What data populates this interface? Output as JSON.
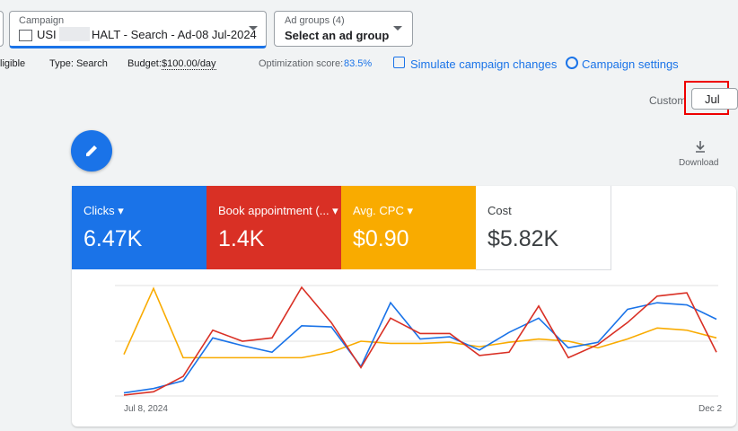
{
  "campaign": {
    "label": "Campaign",
    "name_start": "USI",
    "name_end": "HALT - Search - Ad-08 Jul-2024"
  },
  "ad_groups": {
    "label": "Ad groups (4)",
    "value": "Select an ad group"
  },
  "summary": {
    "status": "ligible",
    "type": "Type: Search",
    "budget_label": "Budget:",
    "budget": "$100.00/day",
    "optimization_label": "Optimization score:",
    "optimization": "83.5%",
    "simulate": "Simulate campaign changes",
    "settings": "Campaign settings"
  },
  "date": {
    "label": "Custom",
    "button": "Jul"
  },
  "download": "Download",
  "metrics": [
    {
      "name": "Clicks",
      "value": "6.47K",
      "color": "#1a73e8"
    },
    {
      "name": "Book appointment (...",
      "value": "1.4K",
      "color": "#d93025"
    },
    {
      "name": "Avg. CPC",
      "value": "$0.90",
      "color": "#f9ab00"
    },
    {
      "name": "Cost",
      "value": "$5.82K",
      "color": "#ffffff"
    }
  ],
  "chart_data": {
    "type": "line",
    "x_labels": [
      "Jul 8, 2024",
      "Dec 2"
    ],
    "series": [
      {
        "name": "Avg. CPC",
        "color": "#f9ab00",
        "values": [
          37,
          97,
          34,
          34,
          34,
          34,
          34,
          39,
          49,
          47,
          47,
          48,
          44,
          48,
          51,
          49,
          43,
          51,
          61,
          59,
          52
        ]
      },
      {
        "name": "Clicks",
        "color": "#1a73e8",
        "values": [
          2,
          6,
          13,
          52,
          45,
          39,
          63,
          62,
          26,
          84,
          51,
          53,
          41,
          57,
          70,
          43,
          48,
          78,
          84,
          82,
          69
        ]
      },
      {
        "name": "Book appointment (...",
        "color": "#d93025",
        "values": [
          0,
          3,
          17,
          59,
          49,
          52,
          98,
          66,
          25,
          70,
          56,
          56,
          36,
          39,
          81,
          34,
          46,
          66,
          90,
          93,
          39
        ]
      }
    ]
  }
}
